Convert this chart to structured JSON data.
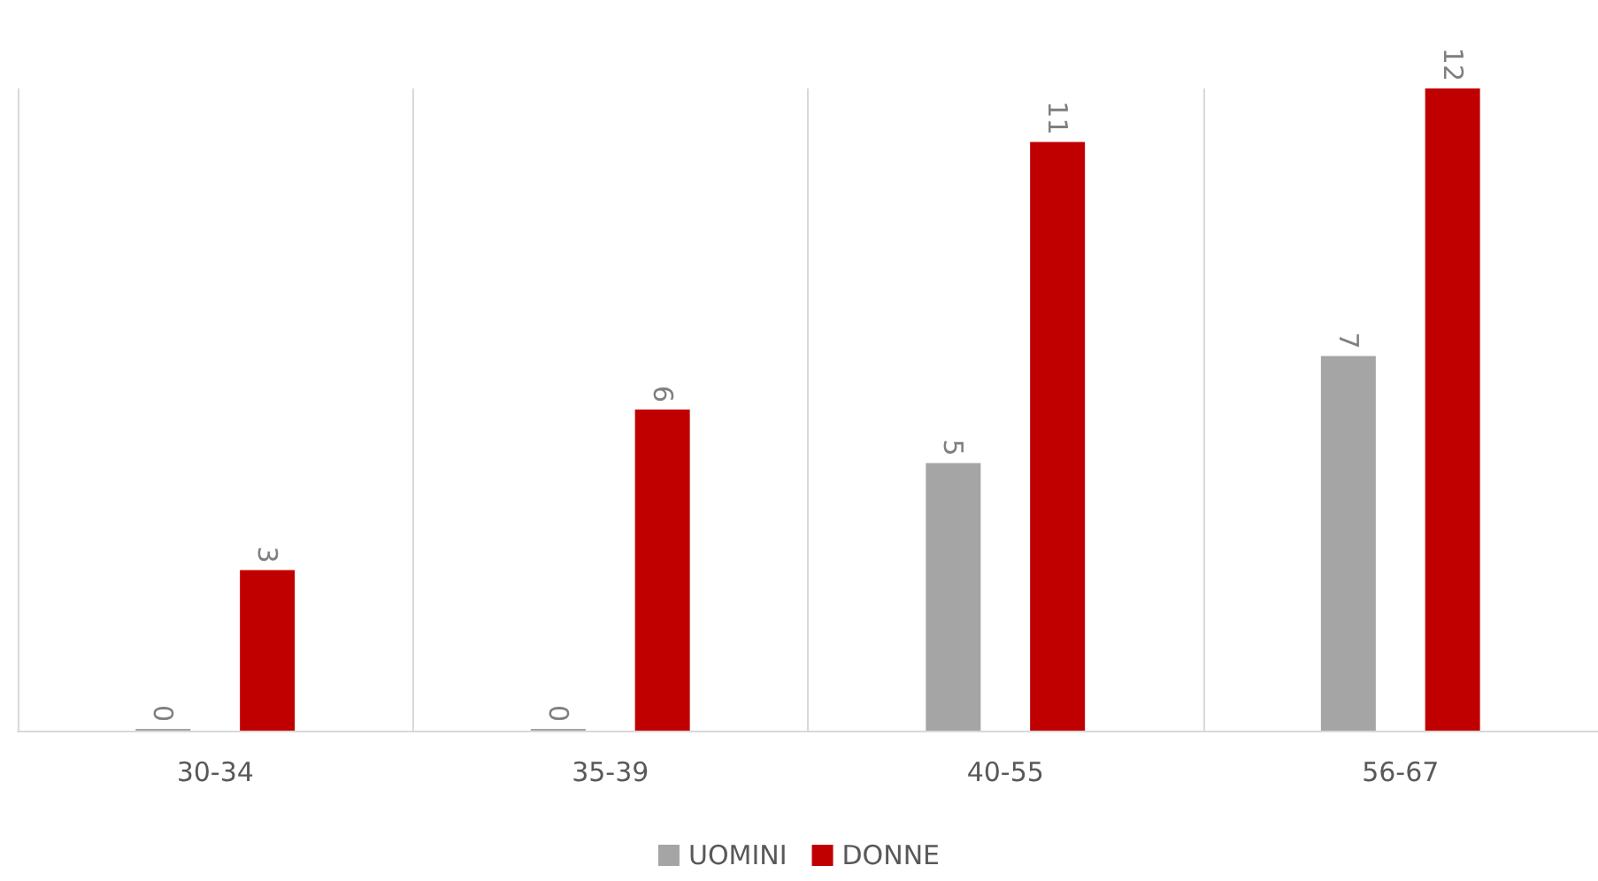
{
  "chart_data": {
    "type": "bar",
    "categories": [
      "30-34",
      "35-39",
      "40-55",
      "56-67"
    ],
    "series": [
      {
        "name": "UOMINI",
        "color": "#a5a5a5",
        "values": [
          0,
          0,
          5,
          7
        ]
      },
      {
        "name": "DONNE",
        "color": "#c00000",
        "values": [
          3,
          6,
          11,
          12
        ]
      }
    ],
    "data_labels": true,
    "grid": "x",
    "legend": "bottom"
  }
}
